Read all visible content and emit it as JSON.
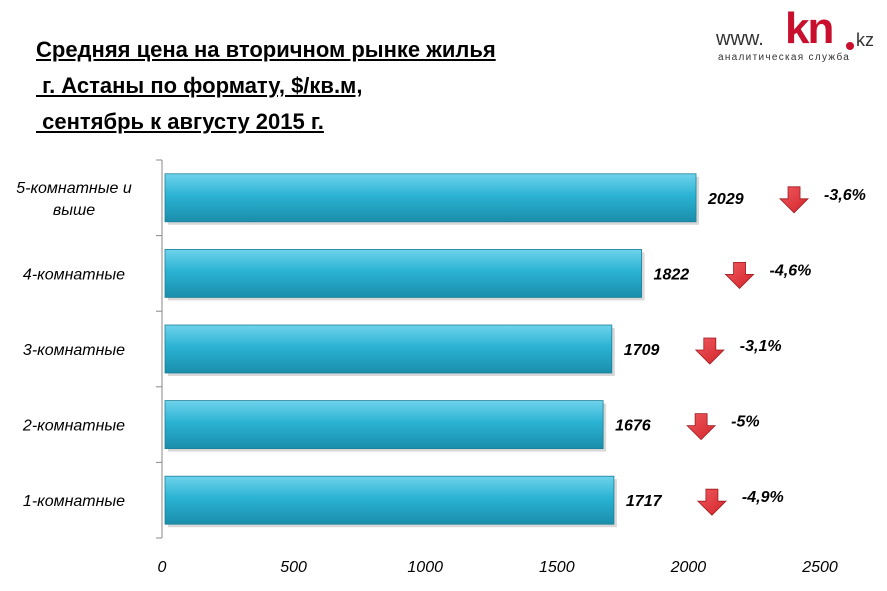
{
  "title": {
    "line1": "Средняя цена на вторичном рынке жилья",
    "line2": " г. Астаны по формату, $/кв.м,",
    "line3": " сентябрь к августу 2015 г."
  },
  "logo": {
    "www": "www.",
    "kn": "kn",
    "kz": "kz",
    "subtitle": "аналитическая служба"
  },
  "colors": {
    "bar": "#2bb3d3",
    "bar_light": "#6fd3ec",
    "bar_dark": "#1a8eab",
    "arrow": "#d2232a"
  },
  "icons": {
    "change_icon": "down-arrow-icon"
  },
  "chart_data": {
    "type": "bar",
    "orientation": "horizontal",
    "categories": [
      "5-комнатные и выше",
      "4-комнатные",
      "3-комнатные",
      "2-комнатные",
      "1-комнатные"
    ],
    "category_lines": [
      [
        "5-комнатные и",
        "выше"
      ],
      [
        "4-комнатные"
      ],
      [
        "3-комнатные"
      ],
      [
        "2-комнатные"
      ],
      [
        "1-комнатные"
      ]
    ],
    "values": [
      2029,
      1822,
      1709,
      1676,
      1717
    ],
    "value_labels": [
      "2029",
      "1822",
      "1709",
      "1676",
      "1717"
    ],
    "changes": [
      "-3,6%",
      "-4,6%",
      "-3,1%",
      "-5%",
      "-4,9%"
    ],
    "xlim": [
      0,
      2500
    ],
    "ticks": [
      0,
      500,
      1000,
      1500,
      2000,
      2500
    ],
    "tick_labels": [
      "0",
      "500",
      "1000",
      "1500",
      "2000",
      "2500"
    ],
    "grid": false,
    "legend": "none",
    "xlabel": "",
    "ylabel": ""
  }
}
